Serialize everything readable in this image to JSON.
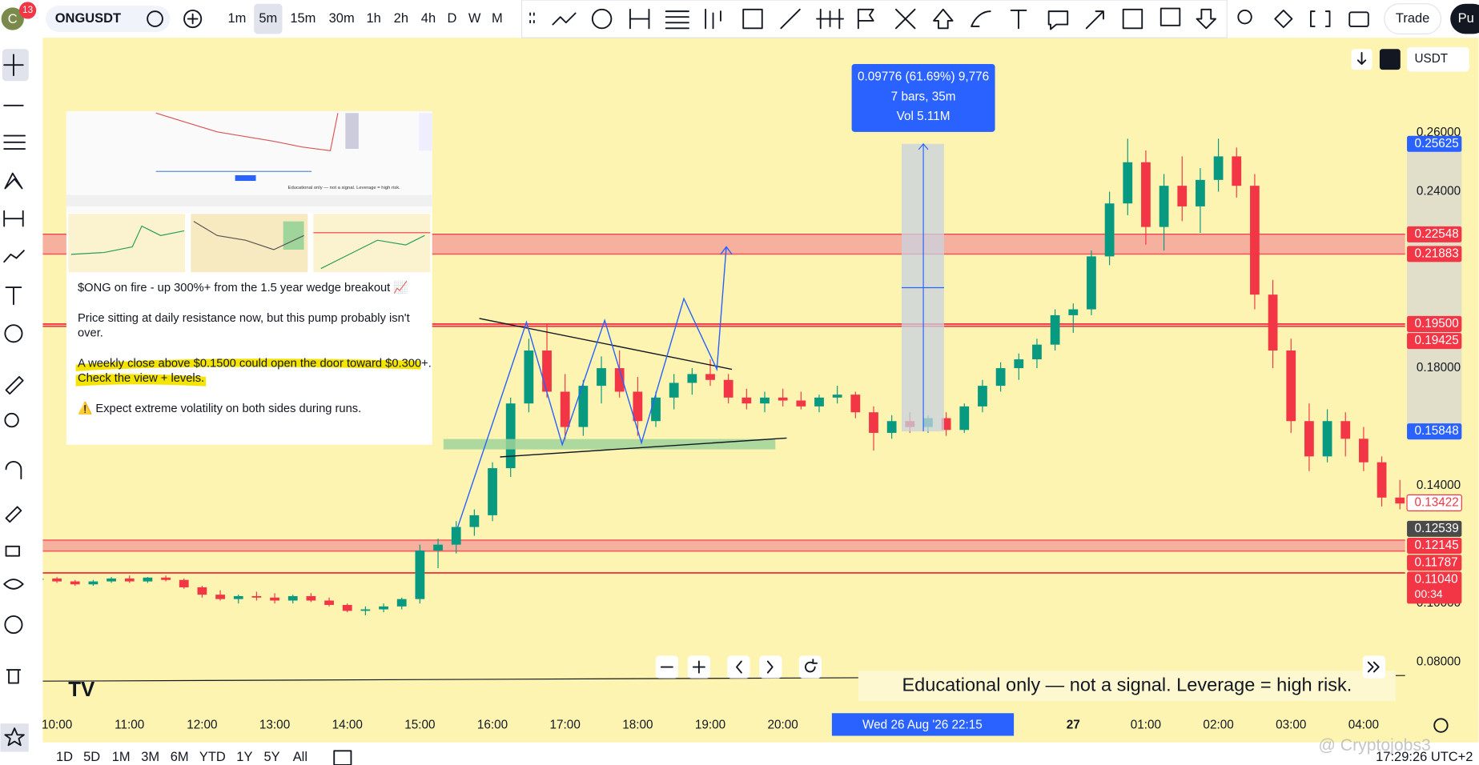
{
  "toolbar": {
    "logo": "C",
    "badge": "13",
    "symbol": "ONGUSDT",
    "intervals": [
      "1m",
      "5m",
      "15m",
      "30m",
      "1h",
      "2h",
      "4h",
      "D",
      "W",
      "M"
    ],
    "trade": "Trade",
    "publish": "Pu"
  },
  "price_axis": {
    "currency": "USDT",
    "ticks": [
      "0.26000",
      "0.24000",
      "0.18000",
      "0.14000",
      "0.10000",
      "0.08000"
    ]
  },
  "price_tags": [
    {
      "label": "0.25625",
      "color": "#2962ff"
    },
    {
      "label": "0.22548",
      "color": "#f23645"
    },
    {
      "label": "0.21883",
      "color": "#f23645"
    },
    {
      "label": "0.19500",
      "color": "#f23645"
    },
    {
      "label": "0.19425",
      "color": "#f23645"
    },
    {
      "label": "0.15848",
      "color": "#2962ff"
    },
    {
      "label": "0.13422",
      "color": "#ffffff"
    },
    {
      "label": "0.12539",
      "color": "#4a4a4a"
    },
    {
      "label": "0.12145",
      "color": "#f23645"
    },
    {
      "label": "0.11787",
      "color": "#f23645"
    },
    {
      "label": "0.11040",
      "sub": "00:34",
      "color": "#f23645"
    }
  ],
  "measure": {
    "lines": [
      "0.09776 (61.69%) 9,776",
      "7 bars, 35m",
      "Vol 5.11M"
    ]
  },
  "inset": {
    "lines": [
      "$ONG on fire - up 300%+ from the 1.5 year wedge breakout 📈",
      "Price sitting at daily resistance now, but this pump probably isn't",
      "over.",
      "A weekly close above $0.1500 could open the door toward $0.300+.",
      "Check the view + levels.",
      "⚠️ Expect extreme volatility on both sides during runs."
    ],
    "caption": "Educational only — not a signal. Leverage = high risk."
  },
  "note": "Educational only — not a signal. Leverage  = high risk.",
  "time_axis": {
    "labels": [
      "10:00",
      "11:00",
      "12:00",
      "13:00",
      "14:00",
      "15:00",
      "16:00",
      "17:00",
      "18:00",
      "19:00",
      "20:00",
      "27",
      "01:00",
      "02:00",
      "03:00",
      "04:00"
    ],
    "crosshair": "Wed 26 Aug '26  22:15"
  },
  "ranges": [
    "1D",
    "5D",
    "1M",
    "3M",
    "6M",
    "YTD",
    "1Y",
    "5Y",
    "All"
  ],
  "clock": "17:29:26 UTC+2",
  "watermark": "@ Cryptojobs3",
  "chart": {
    "candles": [
      [
        0.108,
        0.109,
        0.107,
        0.1085
      ],
      [
        0.1085,
        0.109,
        0.107,
        0.1075
      ],
      [
        0.1075,
        0.108,
        0.106,
        0.1065
      ],
      [
        0.1065,
        0.108,
        0.106,
        0.1075
      ],
      [
        0.1075,
        0.109,
        0.107,
        0.1085
      ],
      [
        0.1085,
        0.1095,
        0.107,
        0.1075
      ],
      [
        0.1075,
        0.109,
        0.107,
        0.1088
      ],
      [
        0.1088,
        0.1095,
        0.1075,
        0.108
      ],
      [
        0.108,
        0.1085,
        0.105,
        0.1055
      ],
      [
        0.1055,
        0.106,
        0.102,
        0.103
      ],
      [
        0.103,
        0.1045,
        0.101,
        0.1015
      ],
      [
        0.1015,
        0.103,
        0.1,
        0.1025
      ],
      [
        0.1025,
        0.104,
        0.101,
        0.102
      ],
      [
        0.102,
        0.1035,
        0.1,
        0.101
      ],
      [
        0.101,
        0.103,
        0.1,
        0.1025
      ],
      [
        0.1025,
        0.1035,
        0.1005,
        0.101
      ],
      [
        0.101,
        0.102,
        0.099,
        0.0995
      ],
      [
        0.0995,
        0.1,
        0.097,
        0.0975
      ],
      [
        0.0975,
        0.099,
        0.096,
        0.098
      ],
      [
        0.098,
        0.1,
        0.097,
        0.099
      ],
      [
        0.099,
        0.102,
        0.098,
        0.1015
      ],
      [
        0.1015,
        0.12,
        0.1,
        0.118
      ],
      [
        0.118,
        0.122,
        0.112,
        0.12
      ],
      [
        0.12,
        0.128,
        0.117,
        0.126
      ],
      [
        0.126,
        0.132,
        0.123,
        0.13
      ],
      [
        0.13,
        0.148,
        0.128,
        0.146
      ],
      [
        0.146,
        0.17,
        0.143,
        0.168
      ],
      [
        0.168,
        0.19,
        0.165,
        0.186
      ],
      [
        0.186,
        0.195,
        0.17,
        0.172
      ],
      [
        0.172,
        0.178,
        0.155,
        0.16
      ],
      [
        0.16,
        0.176,
        0.157,
        0.174
      ],
      [
        0.174,
        0.184,
        0.168,
        0.18
      ],
      [
        0.18,
        0.186,
        0.17,
        0.172
      ],
      [
        0.172,
        0.177,
        0.157,
        0.162
      ],
      [
        0.162,
        0.172,
        0.16,
        0.17
      ],
      [
        0.17,
        0.178,
        0.166,
        0.175
      ],
      [
        0.175,
        0.18,
        0.171,
        0.178
      ],
      [
        0.178,
        0.183,
        0.174,
        0.176
      ],
      [
        0.176,
        0.178,
        0.168,
        0.17
      ],
      [
        0.17,
        0.173,
        0.166,
        0.168
      ],
      [
        0.168,
        0.172,
        0.165,
        0.17
      ],
      [
        0.17,
        0.173,
        0.167,
        0.169
      ],
      [
        0.169,
        0.172,
        0.166,
        0.167
      ],
      [
        0.167,
        0.171,
        0.165,
        0.17
      ],
      [
        0.17,
        0.174,
        0.168,
        0.171
      ],
      [
        0.171,
        0.172,
        0.163,
        0.165
      ],
      [
        0.165,
        0.167,
        0.152,
        0.158
      ],
      [
        0.158,
        0.164,
        0.156,
        0.162
      ],
      [
        0.162,
        0.165,
        0.158,
        0.16
      ],
      [
        0.16,
        0.164,
        0.158,
        0.163
      ],
      [
        0.163,
        0.165,
        0.157,
        0.159
      ],
      [
        0.159,
        0.168,
        0.158,
        0.167
      ],
      [
        0.167,
        0.176,
        0.165,
        0.174
      ],
      [
        0.174,
        0.182,
        0.172,
        0.18
      ],
      [
        0.18,
        0.185,
        0.176,
        0.183
      ],
      [
        0.183,
        0.19,
        0.18,
        0.188
      ],
      [
        0.188,
        0.2,
        0.186,
        0.198
      ],
      [
        0.198,
        0.202,
        0.192,
        0.2
      ],
      [
        0.2,
        0.22,
        0.198,
        0.218
      ],
      [
        0.218,
        0.24,
        0.215,
        0.236
      ],
      [
        0.236,
        0.258,
        0.232,
        0.25
      ],
      [
        0.25,
        0.254,
        0.222,
        0.228
      ],
      [
        0.228,
        0.246,
        0.22,
        0.242
      ],
      [
        0.242,
        0.252,
        0.23,
        0.235
      ],
      [
        0.235,
        0.248,
        0.226,
        0.244
      ],
      [
        0.244,
        0.258,
        0.24,
        0.252
      ],
      [
        0.252,
        0.255,
        0.238,
        0.242
      ],
      [
        0.242,
        0.246,
        0.2,
        0.205
      ],
      [
        0.205,
        0.21,
        0.18,
        0.186
      ],
      [
        0.186,
        0.19,
        0.158,
        0.162
      ],
      [
        0.162,
        0.168,
        0.145,
        0.15
      ],
      [
        0.15,
        0.166,
        0.148,
        0.162
      ],
      [
        0.162,
        0.165,
        0.15,
        0.156
      ],
      [
        0.156,
        0.16,
        0.145,
        0.148
      ],
      [
        0.148,
        0.15,
        0.133,
        0.136
      ],
      [
        0.136,
        0.142,
        0.132,
        0.134
      ]
    ]
  }
}
